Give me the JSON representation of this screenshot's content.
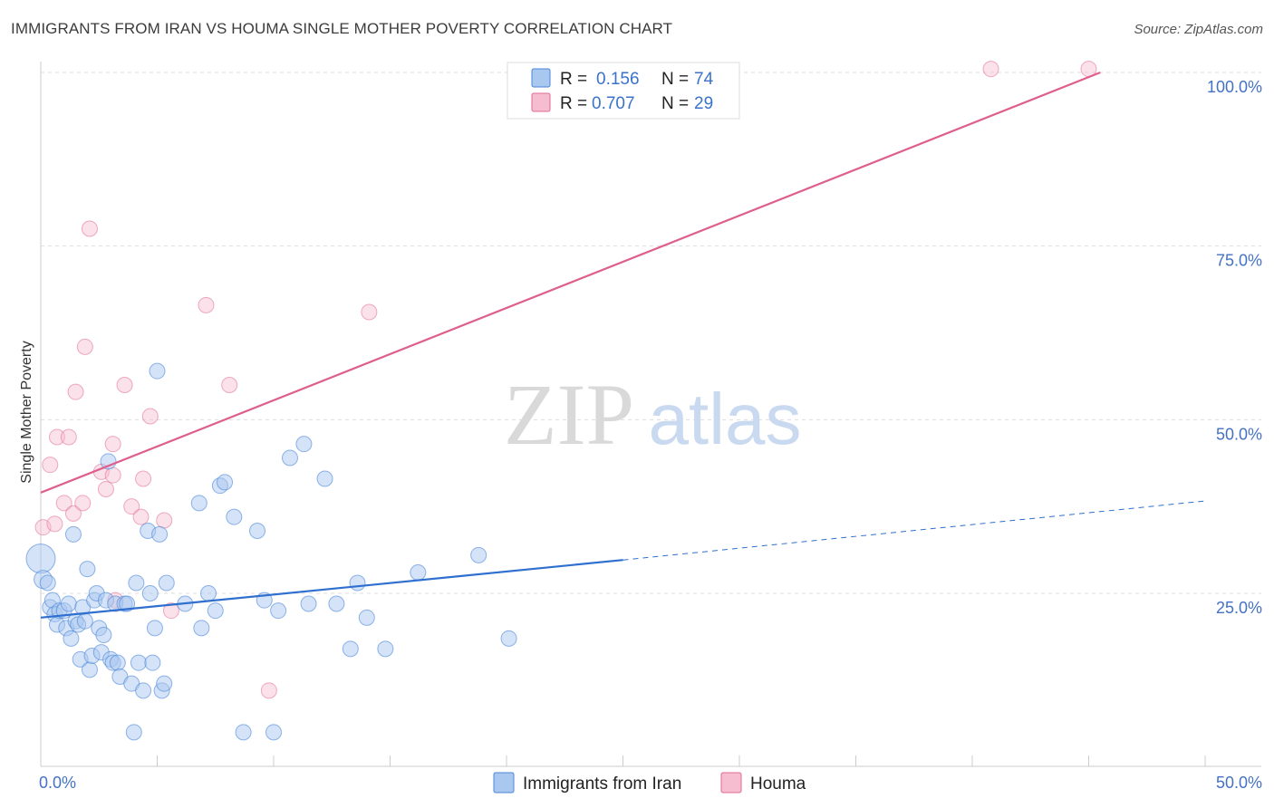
{
  "title": "IMMIGRANTS FROM IRAN VS HOUMA SINGLE MOTHER POVERTY CORRELATION CHART",
  "source": "Source: ZipAtlas.com",
  "watermark": {
    "zip": "ZIP",
    "atlas": "atlas"
  },
  "colors": {
    "iran": "#4a86d8",
    "iran_fill": "#a9c8f0",
    "houma": "#e06b95",
    "houma_fill": "#f6bccf",
    "tick": "#4472c4",
    "grid": "#dddddd"
  },
  "legend": {
    "rows": [
      {
        "r_label": "R =",
        "r_value": "0.156",
        "n_label": "N =",
        "n_value": "74"
      },
      {
        "r_label": "R =",
        "r_value": "0.707",
        "n_label": "N =",
        "n_value": "29"
      }
    ]
  },
  "bottom_legend": [
    "Immigrants from Iran",
    "Houma"
  ],
  "chart_data": {
    "type": "scatter",
    "title": "IMMIGRANTS FROM IRAN VS HOUMA SINGLE MOTHER POVERTY CORRELATION CHART",
    "xlabel": "",
    "ylabel": "Single Mother Poverty",
    "xlim": [
      0,
      50
    ],
    "ylim": [
      0,
      102
    ],
    "x_tick_labels": [
      "0.0%",
      "50.0%"
    ],
    "y_ticks": [
      25,
      50,
      75,
      100
    ],
    "y_tick_labels": [
      "25.0%",
      "50.0%",
      "75.0%",
      "100.0%"
    ],
    "grid": "horizontal dashed",
    "legend_position": "top-center",
    "series": [
      {
        "name": "Immigrants from Iran",
        "r": 0.156,
        "n": 74,
        "trend": {
          "x0": 0,
          "y0": 21.5,
          "x1": 25,
          "y1": 29.8,
          "dashed_to_x": 50,
          "dashed_to_y": 38.3
        },
        "points": [
          [
            0.0,
            30.0
          ],
          [
            0.1,
            27.0
          ],
          [
            0.3,
            26.5
          ],
          [
            0.4,
            23.0
          ],
          [
            0.5,
            24.0
          ],
          [
            0.6,
            22.0
          ],
          [
            0.7,
            20.5
          ],
          [
            0.8,
            22.5
          ],
          [
            1.0,
            22.5
          ],
          [
            1.1,
            20.0
          ],
          [
            1.2,
            23.5
          ],
          [
            1.3,
            18.5
          ],
          [
            1.4,
            33.5
          ],
          [
            1.5,
            21.0
          ],
          [
            1.6,
            20.5
          ],
          [
            1.7,
            15.5
          ],
          [
            1.8,
            23.0
          ],
          [
            1.9,
            21.0
          ],
          [
            2.0,
            28.5
          ],
          [
            2.1,
            14.0
          ],
          [
            2.2,
            16.0
          ],
          [
            2.3,
            24.0
          ],
          [
            2.4,
            25.0
          ],
          [
            2.5,
            20.0
          ],
          [
            2.6,
            16.5
          ],
          [
            2.7,
            19.0
          ],
          [
            2.8,
            24.0
          ],
          [
            2.9,
            44.0
          ],
          [
            3.0,
            15.5
          ],
          [
            3.1,
            15.0
          ],
          [
            3.2,
            23.5
          ],
          [
            3.3,
            15.0
          ],
          [
            3.4,
            13.0
          ],
          [
            3.6,
            23.5
          ],
          [
            3.7,
            23.5
          ],
          [
            3.9,
            12.0
          ],
          [
            4.0,
            5.0
          ],
          [
            4.1,
            26.5
          ],
          [
            4.2,
            15.0
          ],
          [
            4.4,
            11.0
          ],
          [
            4.6,
            34.0
          ],
          [
            4.7,
            25.0
          ],
          [
            4.8,
            15.0
          ],
          [
            4.9,
            20.0
          ],
          [
            5.0,
            57.0
          ],
          [
            5.1,
            33.5
          ],
          [
            5.2,
            11.0
          ],
          [
            5.3,
            12.0
          ],
          [
            5.4,
            26.5
          ],
          [
            6.2,
            23.5
          ],
          [
            6.8,
            38.0
          ],
          [
            6.9,
            20.0
          ],
          [
            7.2,
            25.0
          ],
          [
            7.5,
            22.5
          ],
          [
            7.7,
            40.5
          ],
          [
            7.9,
            41.0
          ],
          [
            8.3,
            36.0
          ],
          [
            8.7,
            5.0
          ],
          [
            9.3,
            34.0
          ],
          [
            9.6,
            24.0
          ],
          [
            10.0,
            5.0
          ],
          [
            10.2,
            22.5
          ],
          [
            10.7,
            44.5
          ],
          [
            11.3,
            46.5
          ],
          [
            11.5,
            23.5
          ],
          [
            12.2,
            41.5
          ],
          [
            12.7,
            23.5
          ],
          [
            13.3,
            17.0
          ],
          [
            13.6,
            26.5
          ],
          [
            14.0,
            21.5
          ],
          [
            14.8,
            17.0
          ],
          [
            16.2,
            28.0
          ],
          [
            18.8,
            30.5
          ],
          [
            20.1,
            18.5
          ]
        ]
      },
      {
        "name": "Houma",
        "r": 0.707,
        "n": 29,
        "trend": {
          "x0": 0,
          "y0": 39.5,
          "x1": 45.5,
          "y1": 100.0
        },
        "points": [
          [
            0.1,
            34.5
          ],
          [
            0.4,
            43.5
          ],
          [
            0.6,
            35.0
          ],
          [
            0.7,
            47.5
          ],
          [
            1.0,
            38.0
          ],
          [
            1.2,
            47.5
          ],
          [
            1.4,
            36.5
          ],
          [
            1.5,
            54.0
          ],
          [
            1.8,
            38.0
          ],
          [
            1.9,
            60.5
          ],
          [
            2.1,
            77.5
          ],
          [
            2.6,
            42.5
          ],
          [
            2.8,
            40.0
          ],
          [
            3.1,
            46.5
          ],
          [
            3.1,
            42.0
          ],
          [
            3.2,
            24.0
          ],
          [
            3.6,
            55.0
          ],
          [
            3.9,
            37.5
          ],
          [
            4.3,
            36.0
          ],
          [
            4.4,
            41.5
          ],
          [
            4.7,
            50.5
          ],
          [
            5.3,
            35.5
          ],
          [
            5.6,
            22.5
          ],
          [
            7.1,
            66.5
          ],
          [
            8.1,
            55.0
          ],
          [
            9.8,
            11.0
          ],
          [
            14.1,
            65.5
          ],
          [
            40.8,
            100.5
          ],
          [
            45.0,
            100.5
          ]
        ]
      }
    ]
  }
}
